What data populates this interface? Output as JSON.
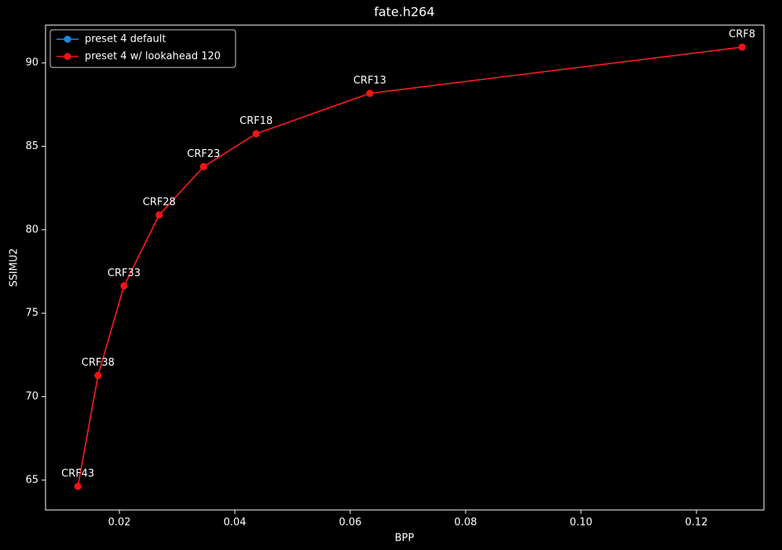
{
  "chart_data": {
    "type": "line",
    "title": "fate.h264",
    "x_label": "BPP",
    "y_label": "SSIMU2",
    "xlim": [
      0.0072,
      0.1317
    ],
    "ylim": [
      63.21,
      92.26
    ],
    "xticks": [
      0.02,
      0.04,
      0.06,
      0.08,
      {
        "value": 0.1,
        "label": "0.10"
      },
      0.12
    ],
    "yticks": [
      65,
      70,
      75,
      80,
      85,
      90
    ],
    "legend": "upper left",
    "point_labels": [
      "CRF43",
      "CRF38",
      "CRF33",
      "CRF28",
      "CRF23",
      "CRF18",
      "CRF13",
      "CRF8"
    ],
    "series": [
      {
        "name": "preset 4 default",
        "color": "#1e88e5",
        "x": [
          0.0128,
          0.0163,
          0.0208,
          0.0269,
          0.0346,
          0.0437,
          0.0634,
          0.1279
        ],
        "values": [
          64.62,
          71.27,
          76.64,
          80.89,
          83.78,
          85.75,
          88.17,
          90.94
        ]
      },
      {
        "name": "preset 4 w/ lookahead 120",
        "color": "#ff1010",
        "x": [
          0.0128,
          0.0163,
          0.0208,
          0.0269,
          0.0346,
          0.0437,
          0.0634,
          0.1279
        ],
        "values": [
          64.62,
          71.27,
          76.64,
          80.89,
          83.78,
          85.75,
          88.17,
          90.94
        ]
      }
    ]
  }
}
